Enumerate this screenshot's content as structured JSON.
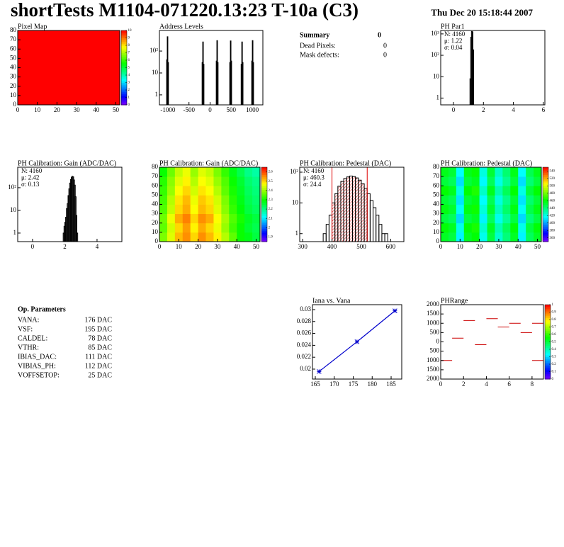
{
  "header": {
    "title": "shortTests M1104-071220.13:23 T-10a (C3)",
    "date": "Thu Dec 20 15:18:44 2007"
  },
  "summary": {
    "title": "Summary",
    "total": 0,
    "rows": [
      [
        "Dead Pixels:",
        0
      ],
      [
        "Mask defects:",
        0
      ]
    ]
  },
  "op_parameters": {
    "title": "Op. Parameters",
    "rows": [
      [
        "VANA:",
        "176 DAC"
      ],
      [
        "VSF:",
        "195 DAC"
      ],
      [
        "CALDEL:",
        "78 DAC"
      ],
      [
        "VTHR:",
        "85 DAC"
      ],
      [
        "IBIAS_DAC:",
        "111 DAC"
      ],
      [
        "VIBIAS_PH:",
        "112 DAC"
      ],
      [
        "VOFFSETOP:",
        "25 DAC"
      ]
    ]
  },
  "chart_data": [
    {
      "type": "heatmap",
      "title": "Pixel Map",
      "xlim": [
        0,
        52
      ],
      "ylim": [
        0,
        80
      ],
      "xticks": [
        0,
        10,
        20,
        30,
        40,
        50
      ],
      "yticks": [
        0,
        10,
        20,
        30,
        40,
        50,
        60,
        70,
        80
      ],
      "zlim": [
        0,
        10
      ],
      "zticks": [
        0,
        1,
        2,
        3,
        4,
        5,
        6,
        7,
        8,
        9,
        10
      ],
      "cells": [
        [
          10
        ]
      ]
    },
    {
      "type": "histogram",
      "title": "Address Levels",
      "log_y": true,
      "xlim": [
        -1200,
        1250
      ],
      "ylim": [
        0.35,
        870
      ],
      "xticks": [
        -1000,
        -500,
        0,
        500,
        1000
      ],
      "yticks": [
        1,
        10,
        {
          "value": 100,
          "label": "10²"
        }
      ],
      "bins": [
        -1030,
        -1015,
        -1000,
        -985,
        -190,
        -175,
        -160,
        -145,
        145,
        160,
        175,
        190,
        465,
        480,
        495,
        510,
        735,
        750,
        765,
        780,
        985,
        1000,
        1015,
        1030
      ],
      "counts": [
        40,
        450,
        30,
        0,
        30,
        260,
        25,
        0,
        35,
        300,
        30,
        0,
        30,
        290,
        35,
        0,
        25,
        260,
        30,
        0,
        35,
        300,
        30
      ]
    },
    {
      "type": "histogram",
      "title": "PH Par1",
      "log_y": true,
      "xlim": [
        -0.85,
        6.1
      ],
      "ylim": [
        0.48,
        1450
      ],
      "xticks": [
        0,
        2,
        4,
        6
      ],
      "yticks": [
        1,
        10,
        {
          "value": 100,
          "label": "10²"
        },
        {
          "value": 1000,
          "label": "10³"
        }
      ],
      "bins": [
        1.1,
        1.15,
        1.2,
        1.25,
        1.3,
        1.35
      ],
      "counts": [
        8,
        700,
        1300,
        1250,
        180
      ],
      "stats": [
        "N: 4160",
        "μ: 1.22",
        "σ: 0.04"
      ]
    },
    {
      "type": "histogram",
      "title": "PH Calibration: Gain (ADC/DAC)",
      "log_y": true,
      "xlim": [
        -0.92,
        5.54
      ],
      "ylim": [
        0.42,
        800
      ],
      "xticks": [
        0,
        2,
        4
      ],
      "yticks": [
        1,
        10,
        {
          "value": 100,
          "label": "10²"
        }
      ],
      "bins": [
        1.9,
        1.95,
        2.0,
        2.05,
        2.1,
        2.15,
        2.2,
        2.25,
        2.3,
        2.35,
        2.4,
        2.45,
        2.5,
        2.55,
        2.6,
        2.65,
        2.7,
        2.75,
        2.8
      ],
      "counts": [
        1,
        2,
        3,
        5,
        12,
        20,
        45,
        90,
        160,
        230,
        290,
        320,
        300,
        220,
        130,
        40,
        6,
        1
      ],
      "stats": [
        "N: 4160",
        "μ: 2.42",
        "σ: 0.13"
      ]
    },
    {
      "type": "heatmap",
      "title": "PH Calibration: Gain (ADC/DAC)",
      "xlim": [
        0,
        52
      ],
      "ylim": [
        0,
        80
      ],
      "xticks": [
        0,
        10,
        20,
        30,
        40,
        50
      ],
      "yticks": [
        0,
        10,
        20,
        30,
        40,
        50,
        60,
        70,
        80
      ],
      "zlim": [
        1.85,
        2.65
      ],
      "zticks": [
        1.9,
        2,
        2.1,
        2.2,
        2.3,
        2.4,
        2.5,
        2.6
      ],
      "cells": [
        [
          2.38,
          2.45,
          2.52,
          2.55,
          2.5,
          2.55,
          2.52,
          2.48,
          2.42,
          2.36,
          2.3,
          2.28,
          2.25
        ],
        [
          2.36,
          2.44,
          2.5,
          2.54,
          2.48,
          2.53,
          2.5,
          2.46,
          2.4,
          2.34,
          2.3,
          2.26,
          2.24
        ],
        [
          2.37,
          2.46,
          2.53,
          2.56,
          2.5,
          2.55,
          2.53,
          2.47,
          2.41,
          2.35,
          2.31,
          2.27,
          2.25
        ],
        [
          2.35,
          2.43,
          2.5,
          2.53,
          2.47,
          2.52,
          2.5,
          2.45,
          2.39,
          2.33,
          2.29,
          2.25,
          2.23
        ],
        [
          2.34,
          2.42,
          2.49,
          2.52,
          2.46,
          2.51,
          2.49,
          2.44,
          2.38,
          2.32,
          2.28,
          2.24,
          2.22
        ],
        [
          2.33,
          2.4,
          2.47,
          2.5,
          2.44,
          2.49,
          2.47,
          2.42,
          2.36,
          2.31,
          2.27,
          2.23,
          2.21
        ],
        [
          2.32,
          2.39,
          2.45,
          2.48,
          2.42,
          2.47,
          2.45,
          2.4,
          2.35,
          2.3,
          2.26,
          2.22,
          2.2
        ],
        [
          2.3,
          2.37,
          2.43,
          2.46,
          2.4,
          2.45,
          2.43,
          2.38,
          2.33,
          2.28,
          2.24,
          2.2,
          2.18
        ]
      ]
    },
    {
      "type": "histogram",
      "title": "PH Calibration: Pedestal (DAC)",
      "log_y": true,
      "xlim": [
        290,
        645
      ],
      "ylim": [
        0.55,
        145
      ],
      "xticks": [
        300,
        400,
        500,
        600
      ],
      "yticks": [
        1,
        10,
        {
          "value": 100,
          "label": "10²"
        }
      ],
      "bins": [
        370,
        380,
        390,
        400,
        410,
        420,
        430,
        440,
        450,
        460,
        470,
        480,
        490,
        500,
        510,
        520,
        530,
        540,
        550,
        560,
        570,
        580,
        590
      ],
      "counts": [
        1,
        2,
        4,
        10,
        20,
        35,
        50,
        62,
        70,
        75,
        72,
        65,
        55,
        42,
        30,
        20,
        12,
        7,
        4,
        2,
        1,
        1
      ],
      "fit_range": [
        400,
        520
      ],
      "fit_color": "#dd0000",
      "stats": [
        "N: 4160",
        "μ: 460.3",
        "σ: 24.4"
      ],
      "stats_colors": [
        "#000000",
        "#dd0000",
        "#dd0000"
      ]
    },
    {
      "type": "heatmap",
      "title": "PH Calibration: Pedestal (DAC)",
      "xlim": [
        0,
        52
      ],
      "ylim": [
        0,
        80
      ],
      "xticks": [
        0,
        10,
        20,
        30,
        40,
        50
      ],
      "yticks": [
        0,
        10,
        20,
        30,
        40,
        50,
        60,
        70,
        80
      ],
      "zlim": [
        350,
        550
      ],
      "zticks": [
        360,
        380,
        400,
        420,
        440,
        460,
        480,
        500,
        520,
        540
      ],
      "cells": [
        [
          455,
          450,
          415,
          455,
          460,
          420,
          450,
          425,
          440,
          455,
          415,
          445,
          455
        ],
        [
          460,
          455,
          420,
          460,
          465,
          425,
          455,
          430,
          445,
          460,
          420,
          450,
          460
        ],
        [
          450,
          445,
          410,
          450,
          455,
          415,
          445,
          420,
          435,
          450,
          410,
          440,
          450
        ],
        [
          458,
          453,
          418,
          458,
          463,
          423,
          453,
          428,
          443,
          458,
          418,
          448,
          458
        ],
        [
          452,
          447,
          412,
          452,
          457,
          417,
          447,
          422,
          437,
          452,
          412,
          442,
          452
        ],
        [
          461,
          456,
          421,
          461,
          466,
          426,
          456,
          431,
          446,
          461,
          421,
          451,
          461
        ],
        [
          451,
          446,
          411,
          451,
          456,
          416,
          446,
          421,
          436,
          451,
          411,
          441,
          451
        ],
        [
          457,
          452,
          417,
          457,
          462,
          422,
          452,
          427,
          442,
          457,
          417,
          447,
          457
        ]
      ]
    },
    {
      "type": "scatter",
      "title": "Iana vs. Vana",
      "color": "#0000cc",
      "xlim": [
        164.25,
        187.8
      ],
      "ylim": [
        0.01833,
        0.03083
      ],
      "xticks": [
        165,
        170,
        175,
        180,
        185
      ],
      "yticks": [
        0.02,
        0.022,
        0.024,
        0.026,
        0.028,
        0.03
      ],
      "x": [
        166,
        176,
        186
      ],
      "values": [
        0.0196,
        0.0246,
        0.0298
      ]
    },
    {
      "type": "segments",
      "title": "PHRange",
      "color": "#cc0000",
      "xlim": [
        0,
        9
      ],
      "ylim": [
        -2000,
        2000
      ],
      "xticks": [
        0,
        2,
        4,
        6,
        8
      ],
      "yticks": [
        {
          "value": -2000,
          "label": "2000"
        },
        {
          "value": -1500,
          "label": "1500"
        },
        {
          "value": -1000,
          "label": "1000"
        },
        {
          "value": -500,
          "label": "500"
        },
        0,
        500,
        1000,
        1500,
        2000
      ],
      "zlim": [
        0,
        1
      ],
      "zticks": [
        0,
        0.1,
        0.2,
        0.3,
        0.4,
        0.5,
        0.6,
        0.7,
        0.8,
        0.9,
        1
      ],
      "x": [
        0,
        1,
        2,
        3,
        4,
        5,
        6,
        7,
        8,
        8
      ],
      "values": [
        -1000,
        200,
        1150,
        -150,
        1250,
        800,
        1000,
        500,
        1000,
        -1000
      ]
    }
  ]
}
